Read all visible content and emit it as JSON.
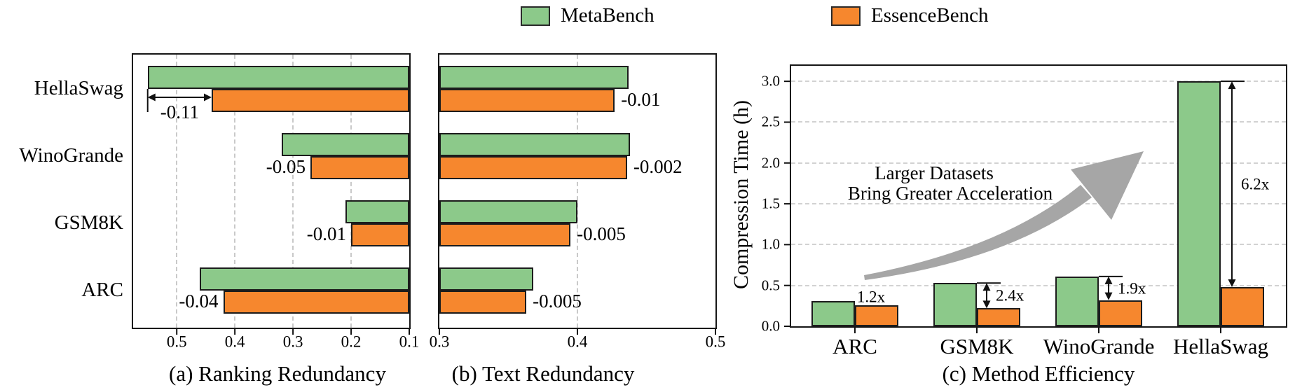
{
  "legend": {
    "position": "top-center",
    "items": [
      {
        "label": "MetaBench",
        "color": "#8CC98A"
      },
      {
        "label": "EssenceBench",
        "color": "#F6872E"
      }
    ]
  },
  "chart_data": [
    {
      "id": "a",
      "type": "bar",
      "orientation": "horizontal",
      "caption": "(a) Ranking Redundancy",
      "categories": [
        "HellaSwag",
        "WinoGrande",
        "GSM8K",
        "ARC"
      ],
      "series": [
        {
          "name": "MetaBench",
          "color": "#8CC98A",
          "values": [
            0.55,
            0.32,
            0.21,
            0.46
          ]
        },
        {
          "name": "EssenceBench",
          "color": "#F6872E",
          "values": [
            0.44,
            0.27,
            0.2,
            0.42
          ]
        }
      ],
      "diff_labels": [
        "-0.11",
        "-0.05",
        "-0.01",
        "-0.04"
      ],
      "diff_arrow": [
        true,
        false,
        false,
        false
      ],
      "xlim": [
        0.575,
        0.1
      ],
      "axis_reversed": true,
      "bars_anchor": "right",
      "xticks": [
        0.5,
        0.4,
        0.3,
        0.2,
        0.1
      ],
      "grid_ticks": [
        0.5,
        0.4,
        0.3,
        0.2
      ],
      "grid": "vertical-dashed"
    },
    {
      "id": "b",
      "type": "bar",
      "orientation": "horizontal",
      "caption": "(b) Text Redundancy",
      "categories": [
        "HellaSwag",
        "WinoGrande",
        "GSM8K",
        "ARC"
      ],
      "series": [
        {
          "name": "MetaBench",
          "color": "#8CC98A",
          "values": [
            0.437,
            0.438,
            0.4,
            0.368
          ]
        },
        {
          "name": "EssenceBench",
          "color": "#F6872E",
          "values": [
            0.427,
            0.436,
            0.395,
            0.363
          ]
        }
      ],
      "diff_labels": [
        "-0.01",
        "-0.002",
        "-0.005",
        "-0.005"
      ],
      "diff_arrow": [
        false,
        false,
        false,
        false
      ],
      "xlim": [
        0.3,
        0.5
      ],
      "axis_reversed": false,
      "bars_anchor": "left",
      "xticks": [
        0.3,
        0.4,
        0.5
      ],
      "grid_ticks": [
        0.4
      ],
      "grid": "vertical-dashed"
    },
    {
      "id": "c",
      "type": "bar",
      "orientation": "vertical",
      "caption": "(c) Method Efficiency",
      "ylabel": "Compression Time (h)",
      "categories": [
        "ARC",
        "GSM8K",
        "WinoGrande",
        "HellaSwag"
      ],
      "series": [
        {
          "name": "MetaBench",
          "color": "#8CC98A",
          "values": [
            0.31,
            0.53,
            0.61,
            3.0
          ]
        },
        {
          "name": "EssenceBench",
          "color": "#F6872E",
          "values": [
            0.26,
            0.22,
            0.32,
            0.48
          ]
        }
      ],
      "speedup_labels": [
        "1.2x",
        "2.4x",
        "1.9x",
        "6.2x"
      ],
      "speedup_arrow": [
        false,
        true,
        true,
        true
      ],
      "ylim": [
        0,
        3.19
      ],
      "yticks": [
        0.0,
        0.5,
        1.0,
        1.5,
        2.0,
        2.5,
        3.0
      ],
      "grid": "horizontal-dashed",
      "annotation": {
        "line1": "Larger Datasets",
        "line2": "Bring Greater Acceleration"
      },
      "annotation_arrow": "gray curved arrow pointing up-right"
    }
  ]
}
